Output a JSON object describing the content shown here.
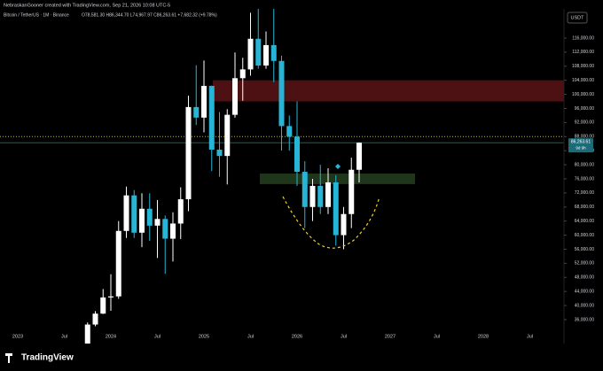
{
  "header": {
    "credit": "NebraskanGooner created with TradingView.com, Sep 21, 2026 10:08 UTC-5",
    "symbol": "Bitcoin / TetherUS · 1M · Binance",
    "ohlc": "O78,581.30 H86,344.70 L74,967.97 C86,263.61 +7,682.32 (+9.78%)",
    "currency": "USDT"
  },
  "footer": {
    "brand": "TradingView"
  },
  "chart_data": {
    "type": "candlestick",
    "categories": [
      "2023",
      null,
      null,
      null,
      null,
      null,
      "Jul",
      null,
      null,
      null,
      null,
      null,
      "2024",
      null,
      null,
      null,
      null,
      null,
      "Jul",
      null,
      null,
      null,
      null,
      null,
      "2025",
      null,
      null,
      null,
      null,
      null,
      "Jul",
      null,
      null,
      null,
      null,
      null,
      "2026",
      null,
      null,
      null,
      null,
      null,
      "Jul",
      null,
      null,
      null,
      null,
      null,
      "2027",
      null,
      null,
      null,
      null,
      null,
      "Jul",
      null,
      null,
      null,
      null,
      null,
      "2028",
      null,
      null,
      null,
      null,
      null,
      "Jul",
      null,
      null,
      null,
      null,
      null
    ],
    "open": [
      null,
      null,
      null,
      null,
      null,
      null,
      null,
      null,
      null,
      27000,
      34600,
      37700,
      42300,
      42600,
      61200,
      71300,
      60700,
      67500,
      62700,
      64600,
      59000,
      63300,
      70200,
      96400,
      93400,
      102400,
      84300,
      82500,
      94200,
      104600,
      107100,
      115800,
      108200,
      114000,
      109500,
      91000,
      88000,
      78000,
      68000,
      74000,
      68000,
      75000,
      60000,
      66000,
      78581.3,
      null,
      null,
      null,
      null,
      null,
      null,
      null,
      null,
      null,
      null,
      null,
      null,
      null,
      null,
      null,
      null,
      null,
      null,
      null,
      null,
      null,
      null,
      null,
      null,
      null,
      null,
      null
    ],
    "high": [
      null,
      null,
      null,
      null,
      null,
      null,
      null,
      null,
      null,
      35200,
      38400,
      44700,
      48900,
      64000,
      73800,
      72800,
      71900,
      71900,
      70000,
      65600,
      66500,
      73600,
      99600,
      108300,
      109600,
      102500,
      95000,
      95800,
      111900,
      110400,
      123200,
      124500,
      117900,
      126000,
      111000,
      94000,
      98000,
      81000,
      76000,
      80000,
      79000,
      77000,
      68000,
      82000,
      86344.7,
      null,
      null,
      null,
      null,
      null,
      null,
      null,
      null,
      null,
      null,
      null,
      null,
      null,
      null,
      null,
      null,
      null,
      null,
      null,
      null,
      null,
      null,
      null,
      null,
      null,
      null,
      null
    ],
    "low": [
      null,
      null,
      null,
      null,
      null,
      null,
      null,
      null,
      null,
      26600,
      34100,
      37600,
      38500,
      41900,
      59200,
      59200,
      56600,
      58400,
      53500,
      49000,
      52500,
      58900,
      66800,
      91300,
      89200,
      78200,
      76600,
      74400,
      93400,
      98200,
      105300,
      107300,
      107300,
      103500,
      84000,
      84000,
      74000,
      62000,
      64000,
      66000,
      66000,
      57000,
      56000,
      62000,
      74967.97,
      null,
      null,
      null,
      null,
      null,
      null,
      null,
      null,
      null,
      null,
      null,
      null,
      null,
      null,
      null,
      null,
      null,
      null,
      null,
      null,
      null,
      null,
      null,
      null,
      null,
      null,
      null
    ],
    "close": [
      null,
      null,
      null,
      null,
      null,
      null,
      null,
      null,
      null,
      34600,
      37700,
      42300,
      42600,
      61200,
      71300,
      60700,
      67500,
      62700,
      64600,
      59000,
      63300,
      70200,
      96400,
      93400,
      102400,
      84300,
      82500,
      94200,
      104600,
      107100,
      115800,
      108200,
      114000,
      109500,
      91000,
      88000,
      78000,
      68000,
      74000,
      68000,
      75000,
      60000,
      66000,
      78581.3,
      86263.61,
      null,
      null,
      null,
      null,
      null,
      null,
      null,
      null,
      null,
      null,
      null,
      null,
      null,
      null,
      null,
      null,
      null,
      null,
      null,
      null,
      null,
      null,
      null,
      null,
      null,
      null,
      null
    ],
    "up_color": "#ffffff",
    "down_color": "#26b5d6",
    "ylim": [
      29200,
      124300
    ],
    "yticks": [
      {
        "value": 36000,
        "label": "36,000.00"
      },
      {
        "value": 40000,
        "label": "40,000.00"
      },
      {
        "value": 44000,
        "label": "44,000.00"
      },
      {
        "value": 48000,
        "label": "48,000.00"
      },
      {
        "value": 52000,
        "label": "52,000.00"
      },
      {
        "value": 56000,
        "label": "56,000.00"
      },
      {
        "value": 60000,
        "label": "60,000.00"
      },
      {
        "value": 64000,
        "label": "64,000.00"
      },
      {
        "value": 68000,
        "label": "68,000.00"
      },
      {
        "value": 72000,
        "label": "72,000.00"
      },
      {
        "value": 76000,
        "label": "76,000.00"
      },
      {
        "value": 80000,
        "label": "80,000.00"
      },
      {
        "value": 84000,
        "label": "84,000.00"
      },
      {
        "value": 88000,
        "label": "88,000.00"
      },
      {
        "value": 92000,
        "label": "92,000.00"
      },
      {
        "value": 96000,
        "label": "96,000.00"
      },
      {
        "value": 100000,
        "label": "100,000.00"
      },
      {
        "value": 104000,
        "label": "104,000.00"
      },
      {
        "value": 108000,
        "label": "108,000.00"
      },
      {
        "value": 112000,
        "label": "112,000.00"
      },
      {
        "value": 116000,
        "label": "116,000.00"
      }
    ],
    "last_price": {
      "value": 86263.61,
      "label": "86,263.61"
    },
    "countdown": "9d 9h",
    "level_line": 88000,
    "zones": [
      {
        "low": 98000,
        "high": 104000,
        "color": "#5a1418"
      },
      {
        "low": 74500,
        "high": 77500,
        "color": "#24401f"
      }
    ]
  }
}
